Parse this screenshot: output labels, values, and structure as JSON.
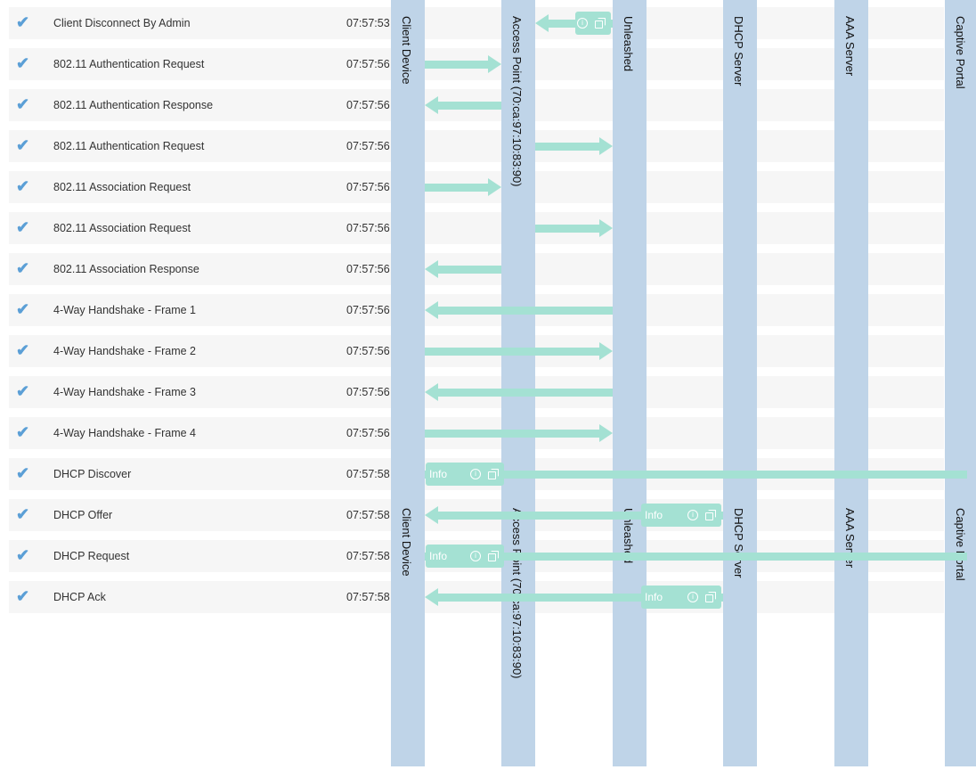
{
  "lanes": [
    {
      "label": "Client Device"
    },
    {
      "label": "Access Point (70:ca:97:10:83:90)"
    },
    {
      "label": "Unleashed"
    },
    {
      "label": "DHCP Server"
    },
    {
      "label": "AAA Server"
    },
    {
      "label": "Captive Portal"
    }
  ],
  "events": [
    {
      "label": "Client Disconnect By Admin",
      "time": "07:57:53",
      "arrow": {
        "from": 2,
        "to": 1,
        "info": true
      }
    },
    {
      "label": "802.11 Authentication Request",
      "time": "07:57:56",
      "arrow": {
        "from": 0,
        "to": 1
      }
    },
    {
      "label": "802.11 Authentication Response",
      "time": "07:57:56",
      "arrow": {
        "from": 1,
        "to": 0
      }
    },
    {
      "label": "802.11 Authentication Request",
      "time": "07:57:56",
      "arrow": {
        "from": 1,
        "to": 2
      }
    },
    {
      "label": "802.11 Association Request",
      "time": "07:57:56",
      "arrow": {
        "from": 0,
        "to": 1
      }
    },
    {
      "label": "802.11 Association Request",
      "time": "07:57:56",
      "arrow": {
        "from": 1,
        "to": 2
      }
    },
    {
      "label": "802.11 Association Response",
      "time": "07:57:56",
      "arrow": {
        "from": 1,
        "to": 0
      }
    },
    {
      "label": "4-Way Handshake - Frame 1",
      "time": "07:57:56",
      "arrow": {
        "from": 2,
        "to": 0
      }
    },
    {
      "label": "4-Way Handshake - Frame 2",
      "time": "07:57:56",
      "arrow": {
        "from": 0,
        "to": 2
      }
    },
    {
      "label": "4-Way Handshake - Frame 3",
      "time": "07:57:56",
      "arrow": {
        "from": 2,
        "to": 0
      }
    },
    {
      "label": "4-Way Handshake - Frame 4",
      "time": "07:57:56",
      "arrow": {
        "from": 0,
        "to": 2
      }
    },
    {
      "label": "DHCP Discover",
      "time": "07:57:58",
      "arrow": {
        "from": 0,
        "to": 5,
        "info": true,
        "info_label": "Info"
      }
    },
    {
      "label": "DHCP Offer",
      "time": "07:57:58",
      "arrow": {
        "from": 3,
        "to": 0,
        "info": true,
        "info_label": "Info"
      }
    },
    {
      "label": "DHCP Request",
      "time": "07:57:58",
      "arrow": {
        "from": 0,
        "to": 5,
        "info": true,
        "info_label": "Info"
      }
    },
    {
      "label": "DHCP Ack",
      "time": "07:57:58",
      "arrow": {
        "from": 3,
        "to": 0,
        "info": true,
        "info_label": "Info"
      }
    }
  ],
  "icons": {
    "check": "check-icon",
    "info": "info-icon",
    "copy": "copy-icon"
  }
}
